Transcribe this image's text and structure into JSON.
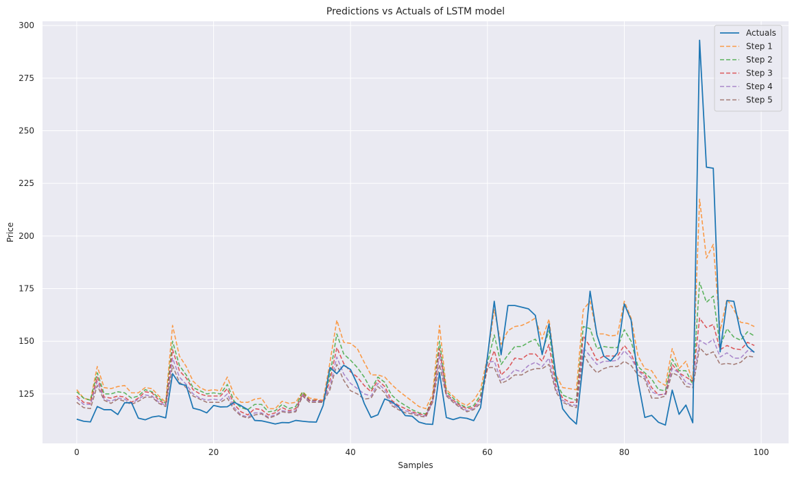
{
  "chart_data": {
    "type": "line",
    "title": "Predictions vs Actuals of LSTM model",
    "xlabel": "Samples",
    "ylabel": "Price",
    "xlim": [
      -5,
      104
    ],
    "ylim": [
      101.5,
      302
    ],
    "xticks": [
      0,
      20,
      40,
      60,
      80,
      100
    ],
    "yticks": [
      125,
      150,
      175,
      200,
      225,
      250,
      275,
      300
    ],
    "grid": true,
    "legend_position": "top-right",
    "background": "#eaeaf2",
    "series": [
      {
        "name": "Actuals",
        "style": "solid",
        "color": "#1f77b4",
        "values": [
          113,
          112,
          111.7,
          119,
          117.5,
          117.5,
          115.2,
          120.8,
          120.8,
          113.5,
          112.7,
          114,
          114.5,
          113.6,
          134.6,
          129.8,
          129,
          118.2,
          117.4,
          116,
          119.5,
          118.8,
          118.9,
          121,
          119.4,
          117.5,
          112.4,
          112.2,
          111.5,
          110.7,
          111.4,
          111.3,
          112.4,
          112,
          111.7,
          111.6,
          119.5,
          137.5,
          134.6,
          138.6,
          136.6,
          129.6,
          120.5,
          113.8,
          115.1,
          122.6,
          121.3,
          118.9,
          114.7,
          114.4,
          111.6,
          110.7,
          110.5,
          135.1,
          113.8,
          112.8,
          113.8,
          113.4,
          112.3,
          118.5,
          142.5,
          169,
          143.6,
          167,
          167,
          166.2,
          165.4,
          162.3,
          143.7,
          158.2,
          133.9,
          117.9,
          113.7,
          110.7,
          140.3,
          173.8,
          153,
          143,
          140.6,
          144.6,
          167.7,
          160,
          131.2,
          113.8,
          114.8,
          111.5,
          110.2,
          126.8,
          115.3,
          119.7,
          111.3,
          293,
          232.7,
          232.2,
          145,
          169.3,
          169,
          153.8,
          147.5,
          144.7
        ]
      },
      {
        "name": "Step 1",
        "style": "dashed",
        "color": "#ff7f0e",
        "values": [
          127,
          123,
          122,
          138,
          128,
          127.5,
          128.5,
          129,
          125.5,
          125.5,
          128,
          127.5,
          124,
          121,
          157.5,
          143,
          138,
          131,
          128,
          126.5,
          127,
          126.5,
          133,
          124.5,
          121,
          121,
          122.5,
          123,
          118,
          118,
          121.5,
          120.5,
          121,
          126,
          123,
          122.5,
          122,
          140,
          160,
          149.5,
          149,
          146.5,
          140,
          134,
          134,
          133,
          129.5,
          126.5,
          124,
          121.5,
          119,
          118,
          125,
          157.5,
          127,
          124,
          121,
          119.5,
          122,
          127,
          142.5,
          165,
          148.5,
          155,
          157,
          157.5,
          159,
          161,
          151,
          160.5,
          134,
          128,
          127.5,
          127,
          165,
          169,
          153.5,
          153.5,
          152.5,
          153,
          169,
          161,
          143,
          137,
          136,
          131,
          129,
          146.5,
          137,
          140.5,
          131,
          217.5,
          189.5,
          196,
          155,
          170,
          165,
          159,
          158.5,
          157
        ]
      },
      {
        "name": "Step 2",
        "style": "dashed",
        "color": "#2ca02c",
        "values": [
          126,
          123,
          122,
          135,
          125,
          125,
          126,
          125.5,
          123,
          124,
          127,
          126,
          123,
          120.5,
          150,
          138.5,
          134,
          128,
          126.5,
          125,
          125.5,
          125,
          129.5,
          121.5,
          118.5,
          117.5,
          120,
          120,
          116.5,
          117,
          120,
          118,
          119,
          126,
          122,
          122,
          121,
          134,
          153.5,
          144,
          141,
          137.5,
          133,
          127,
          133,
          130.5,
          124.5,
          121.5,
          119.5,
          117.5,
          116,
          115.5,
          123,
          150,
          126,
          123,
          120,
          118.5,
          119.5,
          124.5,
          139.5,
          153,
          139,
          143.5,
          147.5,
          147.5,
          149.5,
          151,
          145,
          155,
          131,
          124.5,
          123,
          122,
          157,
          156,
          146.5,
          147.5,
          147,
          147,
          155.5,
          150,
          138,
          135,
          132,
          127,
          126.5,
          141.5,
          136,
          136,
          129.5,
          178,
          168.5,
          171.5,
          147.5,
          156,
          152,
          150.5,
          154.5,
          152.5
        ]
      },
      {
        "name": "Step 3",
        "style": "dashed",
        "color": "#d62728",
        "values": [
          124,
          121,
          120.5,
          133,
          123.5,
          123,
          124,
          123.5,
          121,
          123,
          126,
          125.5,
          122,
          120,
          146,
          136,
          132.5,
          127,
          125,
          124,
          124,
          124,
          127.5,
          120,
          116.5,
          115,
          118,
          117.5,
          115,
          116,
          118.5,
          117,
          118,
          125,
          122,
          122,
          121.5,
          131.5,
          147,
          139.5,
          135.5,
          133,
          129,
          126,
          131.5,
          128.5,
          122,
          119.5,
          118,
          116.5,
          115.5,
          115,
          122.5,
          146.5,
          125,
          122,
          119.5,
          118,
          118.5,
          123,
          137,
          145.5,
          134,
          137,
          142,
          141.5,
          144,
          144,
          140.5,
          148.5,
          129,
          123,
          121,
          121,
          152.5,
          147.5,
          141,
          143,
          143,
          143,
          148,
          144,
          136,
          134.5,
          128,
          124.5,
          125,
          139,
          135,
          133,
          131,
          161,
          156.5,
          158,
          146,
          148,
          146.5,
          146,
          149.5,
          148
        ]
      },
      {
        "name": "Step 4",
        "style": "dashed",
        "color": "#9467bd",
        "values": [
          123,
          120,
          120,
          131,
          122.5,
          121.5,
          123,
          122.5,
          120.5,
          122.5,
          124.5,
          124,
          121,
          119.5,
          142,
          133,
          129.5,
          125,
          123,
          122,
          122.5,
          122,
          125,
          118.5,
          115,
          114,
          116,
          116,
          114,
          115,
          117,
          116.5,
          117,
          124.5,
          121.5,
          121.5,
          121.5,
          128.5,
          142.5,
          134.5,
          130,
          127.5,
          125,
          124,
          130,
          127,
          120.5,
          118,
          117,
          116,
          115,
          114.5,
          121.5,
          143.5,
          124.5,
          121.5,
          119,
          117,
          118,
          121.5,
          140,
          140.5,
          131.5,
          133,
          136.5,
          135.5,
          138.5,
          140,
          138,
          142,
          127,
          122,
          120,
          119.5,
          147,
          143,
          139,
          140.5,
          140.5,
          141,
          145.5,
          142,
          136,
          133,
          126,
          124.5,
          125,
          137,
          135,
          130.5,
          129,
          150.5,
          148.5,
          151,
          142.5,
          144.5,
          142,
          142,
          145.5,
          145
        ]
      },
      {
        "name": "Step 5",
        "style": "dashed",
        "color": "#8c564b",
        "values": [
          121,
          118.5,
          118,
          129,
          122,
          120.5,
          122.5,
          121.5,
          120,
          121.5,
          123.5,
          123.5,
          120.5,
          119,
          138.5,
          130.5,
          128,
          124,
          122.5,
          121,
          121,
          121,
          123,
          117.5,
          114.5,
          113.5,
          115,
          115.5,
          113.5,
          114.5,
          116.5,
          116,
          116.5,
          124,
          121,
          121,
          121,
          127,
          139,
          131.5,
          126.5,
          125,
          122.5,
          123,
          128.5,
          125.5,
          119.5,
          117.5,
          116,
          115.5,
          114.5,
          114,
          121,
          139,
          124,
          121,
          118.5,
          116.5,
          117.5,
          120.5,
          137.5,
          137.5,
          130,
          131.5,
          134,
          134,
          136,
          137,
          137,
          139,
          126,
          121,
          119.5,
          118.5,
          144,
          138.5,
          135,
          137,
          138,
          138,
          140.5,
          138.5,
          134,
          132,
          123,
          123,
          124,
          135,
          133.5,
          128.5,
          128,
          147,
          143.5,
          145,
          139,
          139.5,
          139,
          140,
          143,
          142.5
        ]
      }
    ]
  }
}
